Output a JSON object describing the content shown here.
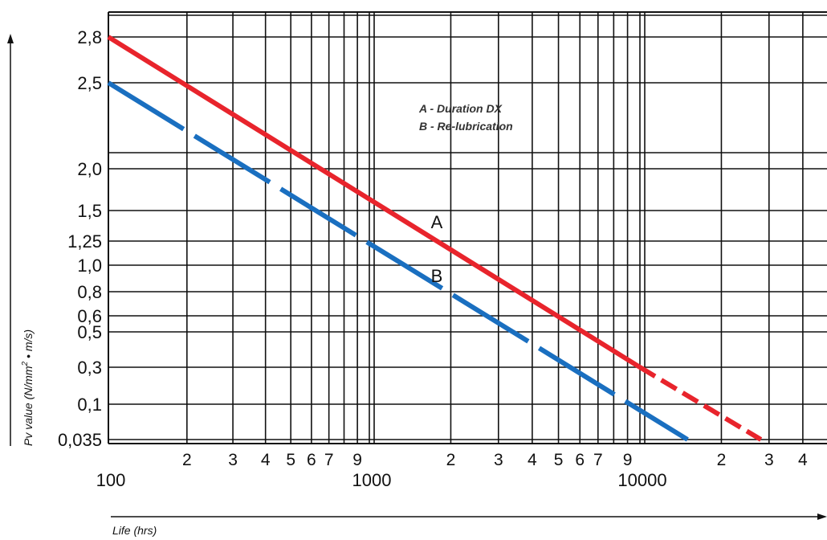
{
  "chart_data": {
    "type": "line",
    "title": "",
    "xlabel": "Life (hrs)",
    "ylabel_main": "Pv value (N/mm",
    "ylabel_sup": "2",
    "ylabel_tail": " • m/s)",
    "x_scale": "log",
    "xlim": [
      100,
      50000
    ],
    "x_minor_tick_labels": [
      "2",
      "3",
      "4",
      "5",
      "6",
      "7",
      "9",
      "2",
      "3",
      "4",
      "5",
      "6",
      "7",
      "9",
      "2",
      "3",
      "4"
    ],
    "x_major_tick_labels": [
      "100",
      "1000",
      "10000"
    ],
    "y_tick_labels": [
      "2,8",
      "2,5",
      "2,0",
      "1,5",
      "1,25",
      "1,0",
      "0,8",
      "0,6",
      "0,5",
      "0,3",
      "0,1",
      "0,035"
    ],
    "y_scale": "non-linear (printed tick labels)",
    "legend_entries": [
      "A - Duration DX",
      "B - Re-lubrication"
    ],
    "legend_position": "top-center",
    "series": [
      {
        "name": "A",
        "color": "#e8242c",
        "style": "solid, dashed beyond 10000 hrs",
        "x": [
          100,
          10000,
          28000
        ],
        "y": [
          2.8,
          0.3,
          0.035
        ]
      },
      {
        "name": "B",
        "color": "#1a6fc0",
        "style": "long dashes",
        "x": [
          100,
          1000,
          15000
        ],
        "y": [
          2.5,
          1.25,
          0.035
        ]
      }
    ],
    "colors": {
      "series_a": "#e8242c",
      "series_b": "#1a6fc0"
    }
  }
}
